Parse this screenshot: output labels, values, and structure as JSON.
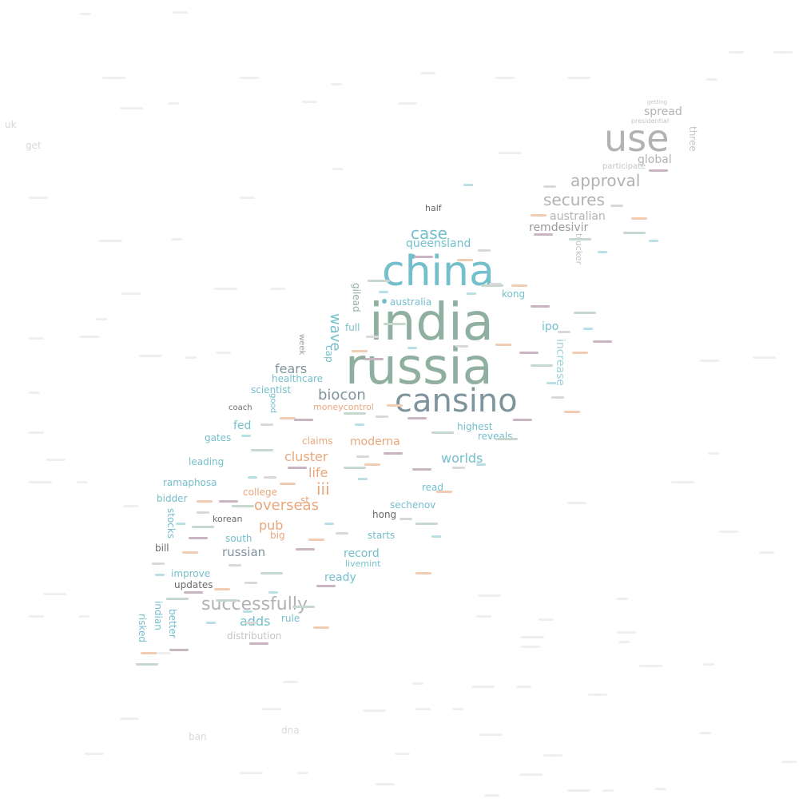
{
  "palette": {
    "teal": "#74bfcc",
    "sage": "#8fb0a0",
    "slate": "#7e949c",
    "gray": "#b2b2b2",
    "light_gray": "#c4c4c4",
    "orange": "#e9a77c",
    "light_blue": "#9fd4df",
    "dark": "#6a6a6a",
    "bg_word": "#e9e9e9"
  },
  "words": {
    "india": "india",
    "russia": "russia",
    "china": "china",
    "cansino": "cansino",
    "use": "use",
    "approval": "approval",
    "secures": "secures",
    "australian": "australian",
    "spread": "spread",
    "global": "global",
    "participate": "participate",
    "three": "three",
    "presidential": "presidential",
    "getting": "getting",
    "remdesivir": "remdesivir",
    "trucker": "trucker",
    "case": "case",
    "queensland": "queensland",
    "half": "half",
    "australia": "australia",
    "kong_mid": "kong",
    "wave": "wave",
    "gilead": "gilead",
    "full": "full",
    "ipo": "ipo",
    "increase": "increase",
    "biocon": "biocon",
    "fears": "fears",
    "healthcare": "healthcare",
    "scientist": "scientist",
    "week": "week",
    "cap": "cap",
    "fed": "fed",
    "coach": "coach",
    "moneycontrol": "moneycontrol",
    "highest": "highest",
    "reveals": "reveals",
    "cluster": "cluster",
    "moderna": "moderna",
    "claims": "claims",
    "worlds": "worlds",
    "gates": "gates",
    "leading": "leading",
    "life": "life",
    "iii": "iii",
    "overseas": "overseas",
    "ramaphosa": "ramaphosa",
    "bidder": "bidder",
    "college": "college",
    "st": "st",
    "read": "read",
    "sechenov": "sechenov",
    "hong": "hong",
    "korean": "korean",
    "pub": "pub",
    "big": "big",
    "stocks": "stocks",
    "south": "south",
    "russian": "russian",
    "starts": "starts",
    "bill": "bill",
    "record": "record",
    "livemint": "livemint",
    "improve": "improve",
    "ready": "ready",
    "updates": "updates",
    "successfully": "successfully",
    "adds": "adds",
    "rule": "rule",
    "indian": "indian",
    "better": "better",
    "risked": "risked",
    "distribution": "distribution",
    "good": "good",
    "uk": "uk",
    "get": "get",
    "ban": "ban",
    "dna": "dna"
  }
}
